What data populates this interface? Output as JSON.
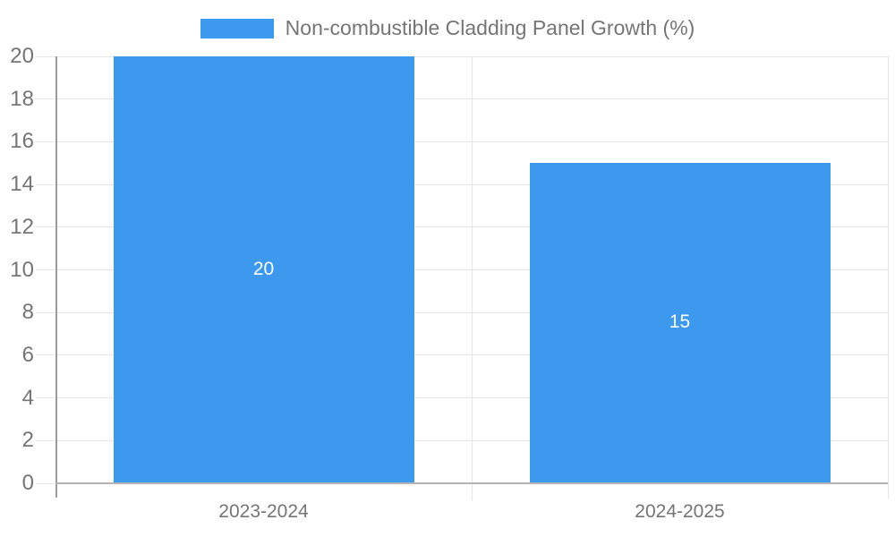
{
  "chart_data": {
    "type": "bar",
    "title": "Non-combustible Cladding Panel Growth (%)",
    "categories": [
      "2023-2024",
      "2024-2025"
    ],
    "values": [
      20,
      15
    ],
    "data_labels": [
      "20",
      "15"
    ],
    "xlabel": "",
    "ylabel": "",
    "ylim": [
      0,
      20
    ],
    "y_ticks": [
      0,
      2,
      4,
      6,
      8,
      10,
      12,
      14,
      16,
      18,
      20
    ],
    "grid": true,
    "legend_position": "top",
    "colors": {
      "bar": "#3C99EE",
      "grid": "#E6E6E6",
      "axis": "#9A9A9A",
      "baseline": "#B3B3B3",
      "text": "#757575",
      "data_label": "#FFFFFF",
      "background": "#FFFFFF"
    }
  }
}
